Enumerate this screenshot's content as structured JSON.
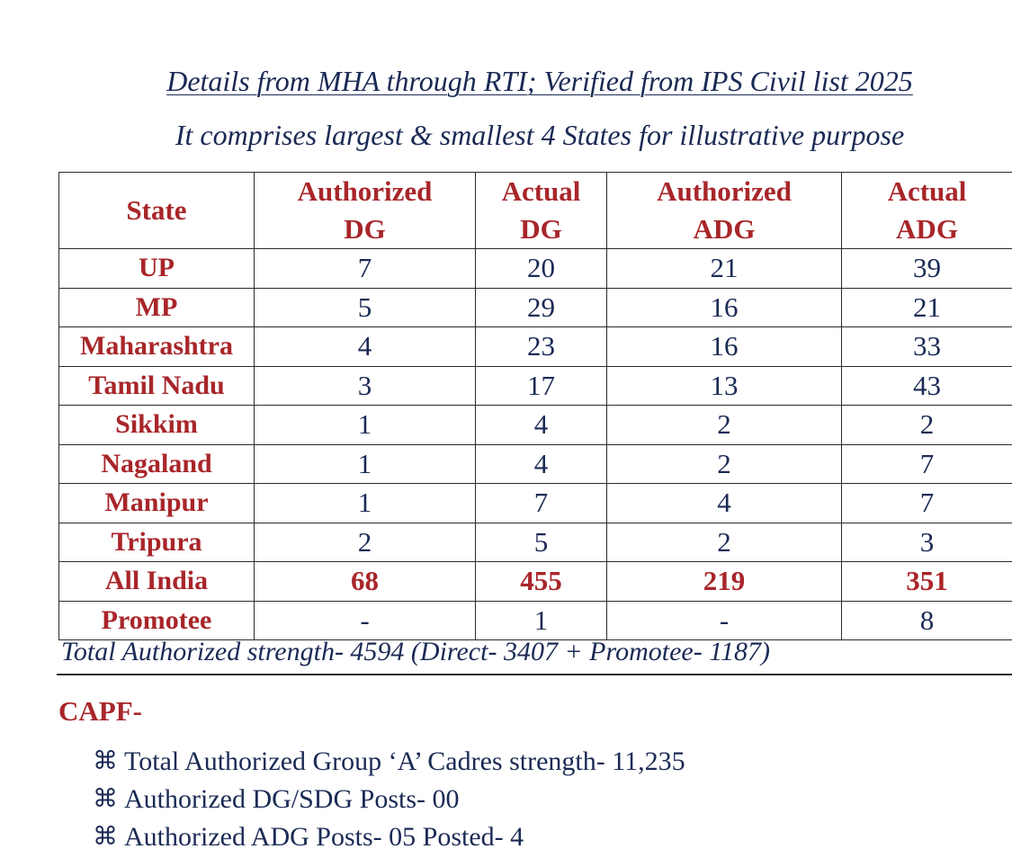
{
  "title": "Details from MHA through RTI; Verified from IPS Civil list 2025",
  "subtitle": "It comprises largest & smallest 4 States for illustrative purpose",
  "table": {
    "headers": {
      "state": "State",
      "auth_dg_1": "Authorized",
      "auth_dg_2": "DG",
      "act_dg_1": "Actual",
      "act_dg_2": "DG",
      "auth_adg_1": "Authorized",
      "auth_adg_2": "ADG",
      "act_adg_1": "Actual",
      "act_adg_2": "ADG"
    },
    "rows": [
      {
        "state": "UP",
        "auth_dg": "7",
        "act_dg": "20",
        "auth_adg": "21",
        "act_adg": "39"
      },
      {
        "state": "MP",
        "auth_dg": "5",
        "act_dg": "29",
        "auth_adg": "16",
        "act_adg": "21"
      },
      {
        "state": "Maharashtra",
        "auth_dg": "4",
        "act_dg": "23",
        "auth_adg": "16",
        "act_adg": "33"
      },
      {
        "state": "Tamil Nadu",
        "auth_dg": "3",
        "act_dg": "17",
        "auth_adg": "13",
        "act_adg": "43"
      },
      {
        "state": "Sikkim",
        "auth_dg": "1",
        "act_dg": "4",
        "auth_adg": "2",
        "act_adg": "2"
      },
      {
        "state": "Nagaland",
        "auth_dg": "1",
        "act_dg": "4",
        "auth_adg": "2",
        "act_adg": "7"
      },
      {
        "state": "Manipur",
        "auth_dg": "1",
        "act_dg": "7",
        "auth_adg": "4",
        "act_adg": "7"
      },
      {
        "state": "Tripura",
        "auth_dg": "2",
        "act_dg": "5",
        "auth_adg": "2",
        "act_adg": "3"
      },
      {
        "state": "All India",
        "auth_dg": "68",
        "act_dg": "455",
        "auth_adg": "219",
        "act_adg": "351"
      },
      {
        "state": "Promotee",
        "auth_dg": "-",
        "act_dg": "1",
        "auth_adg": "-",
        "act_adg": "8"
      }
    ]
  },
  "total_line": "Total Authorized strength- 4594 (Direct- 3407 + Promotee- 1187)",
  "capf": {
    "label": "CAPF-",
    "bullet_icon": "fleur-cross-icon",
    "items": [
      "Total Authorized Group ‘A’ Cadres strength- 11,235",
      "Authorized DG/SDG Posts- 00",
      "Authorized ADG Posts- 05 Posted- 4"
    ]
  },
  "colors": {
    "header_red": "#a8262a",
    "body_navy": "#1b2a55"
  }
}
